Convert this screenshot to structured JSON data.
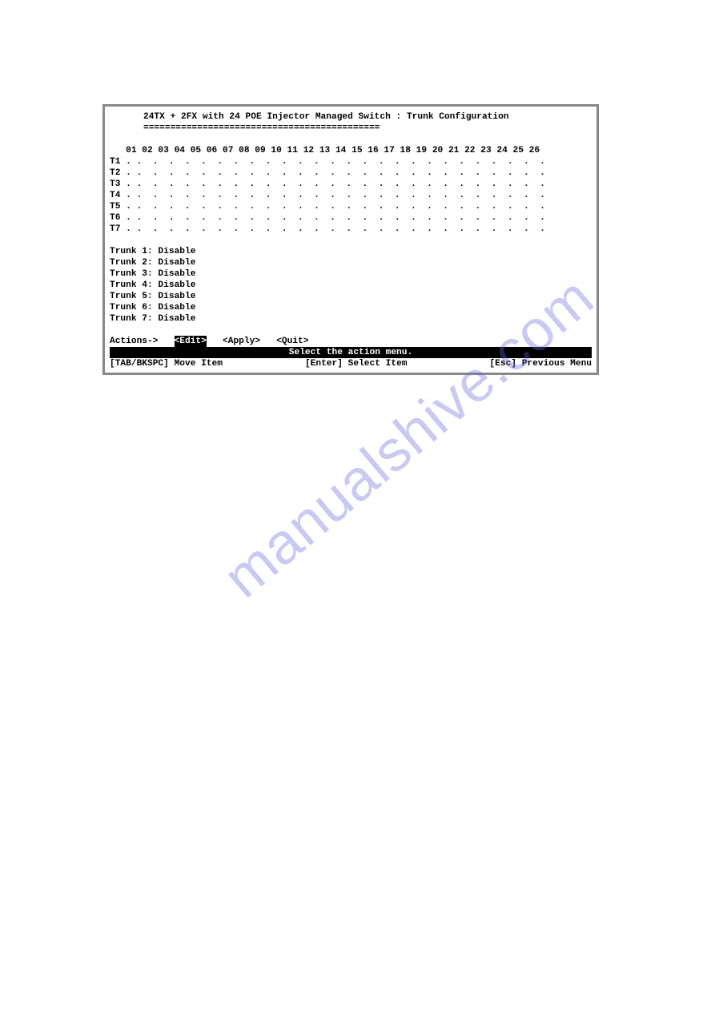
{
  "watermark_text": "manualshive.com",
  "terminal": {
    "title": "24TX + 2FX with 24 POE Injector Managed Switch : Trunk Configuration",
    "divider": "============================================",
    "port_header": "   01 02 03 04 05 06 07 08 09 10 11 12 13 14 15 16 17 18 19 20 21 22 23 24 25 26",
    "trunk_rows": [
      {
        "label": "T1",
        "cells": ". .  .  .  .  .  .  .  .  .  .  .  .  .  .  .  .  .  .  .  .  .  .  .  .  .  ."
      },
      {
        "label": "T2",
        "cells": ". .  .  .  .  .  .  .  .  .  .  .  .  .  .  .  .  .  .  .  .  .  .  .  .  .  ."
      },
      {
        "label": "T3",
        "cells": ". .  .  .  .  .  .  .  .  .  .  .  .  .  .  .  .  .  .  .  .  .  .  .  .  .  ."
      },
      {
        "label": "T4",
        "cells": ". .  .  .  .  .  .  .  .  .  .  .  .  .  .  .  .  .  .  .  .  .  .  .  .  .  ."
      },
      {
        "label": "T5",
        "cells": ". .  .  .  .  .  .  .  .  .  .  .  .  .  .  .  .  .  .  .  .  .  .  .  .  .  ."
      },
      {
        "label": "T6",
        "cells": ". .  .  .  .  .  .  .  .  .  .  .  .  .  .  .  .  .  .  .  .  .  .  .  .  .  ."
      },
      {
        "label": "T7",
        "cells": ". .  .  .  .  .  .  .  .  .  .  .  .  .  .  .  .  .  .  .  .  .  .  .  .  .  ."
      }
    ],
    "trunk_status": [
      "Trunk 1: Disable",
      "Trunk 2: Disable",
      "Trunk 3: Disable",
      "Trunk 4: Disable",
      "Trunk 5: Disable",
      "Trunk 6: Disable",
      "Trunk 7: Disable"
    ],
    "actions": {
      "prefix": "Actions->   ",
      "edit": "<Edit>",
      "gap1": "   ",
      "apply": "<Apply>",
      "gap2": "   ",
      "quit": "<Quit>"
    },
    "status_bar": "Select the action menu.",
    "hints": {
      "left": "[TAB/BKSPC] Move Item",
      "center": "[Enter] Select Item",
      "right": "[Esc] Previous Menu"
    }
  },
  "colors": {
    "border": "#888888",
    "bg": "#ffffff",
    "text": "#000000",
    "inverted_bg": "#000000",
    "inverted_fg": "#ffffff",
    "watermark": "rgba(100,100,220,0.35)"
  },
  "font": {
    "family": "Lucida Console, Courier New, monospace",
    "size_pt": 8,
    "weight": "bold"
  }
}
